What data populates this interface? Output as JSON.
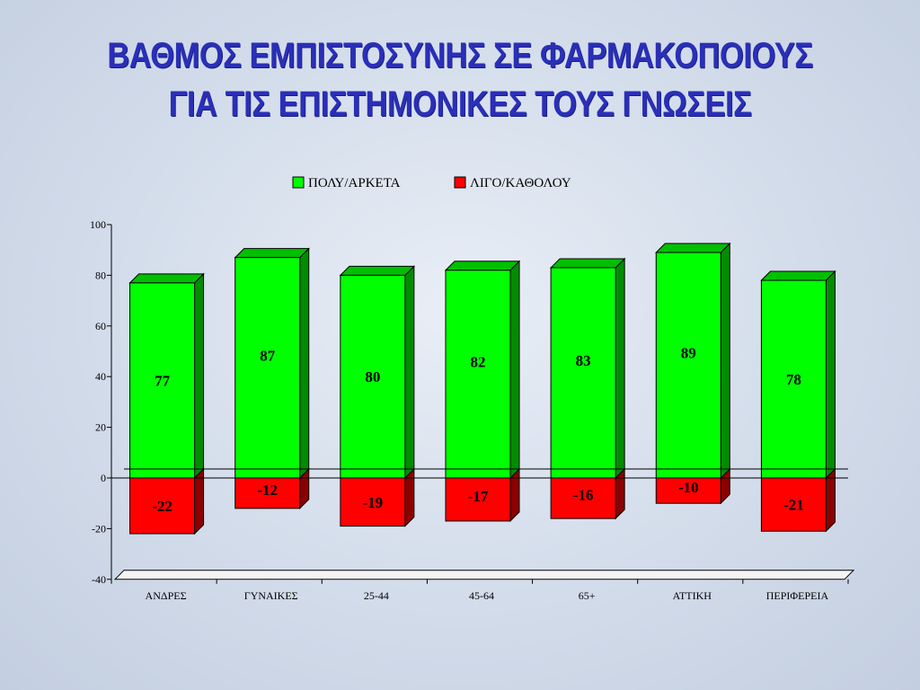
{
  "title_line1": "ΒΑΘΜΟΣ ΕΜΠΙΣΤΟΣΥΝΗΣ ΣΕ ΦΑΡΜΑΚΟΠΟΙΟΥΣ",
  "title_line2": "ΓΙΑ ΤΙΣ ΕΠΙΣΤΗΜΟΝΙΚΕΣ ΤΟΥΣ ΓΝΩΣΕΙΣ",
  "colors": {
    "title": "#2a2fb8",
    "positive": "#00ff00",
    "negative": "#ff0000"
  },
  "chart_data": {
    "type": "bar",
    "stacked": true,
    "three_d": true,
    "categories": [
      "ΑΝΔΡΕΣ",
      "ΓΥΝΑΙΚΕΣ",
      "25-44",
      "45-64",
      "65+",
      "ΑΤΤΙΚΗ",
      "ΠΕΡΙΦΕΡΕΙΑ"
    ],
    "series": [
      {
        "name": "ΠΟΛΥ/ΑΡΚΕΤΑ",
        "color": "#00ff00",
        "values": [
          77,
          87,
          80,
          82,
          83,
          89,
          78
        ]
      },
      {
        "name": "ΛΙΓΟ/ΚΑΘΟΛΟΥ",
        "color": "#ff0000",
        "values": [
          -22,
          -12,
          -19,
          -17,
          -16,
          -10,
          -21
        ]
      }
    ],
    "ylim": [
      -40,
      100
    ],
    "yticks": [
      -40,
      -20,
      0,
      20,
      40,
      60,
      80,
      100
    ],
    "legend": "top",
    "grid": false
  }
}
